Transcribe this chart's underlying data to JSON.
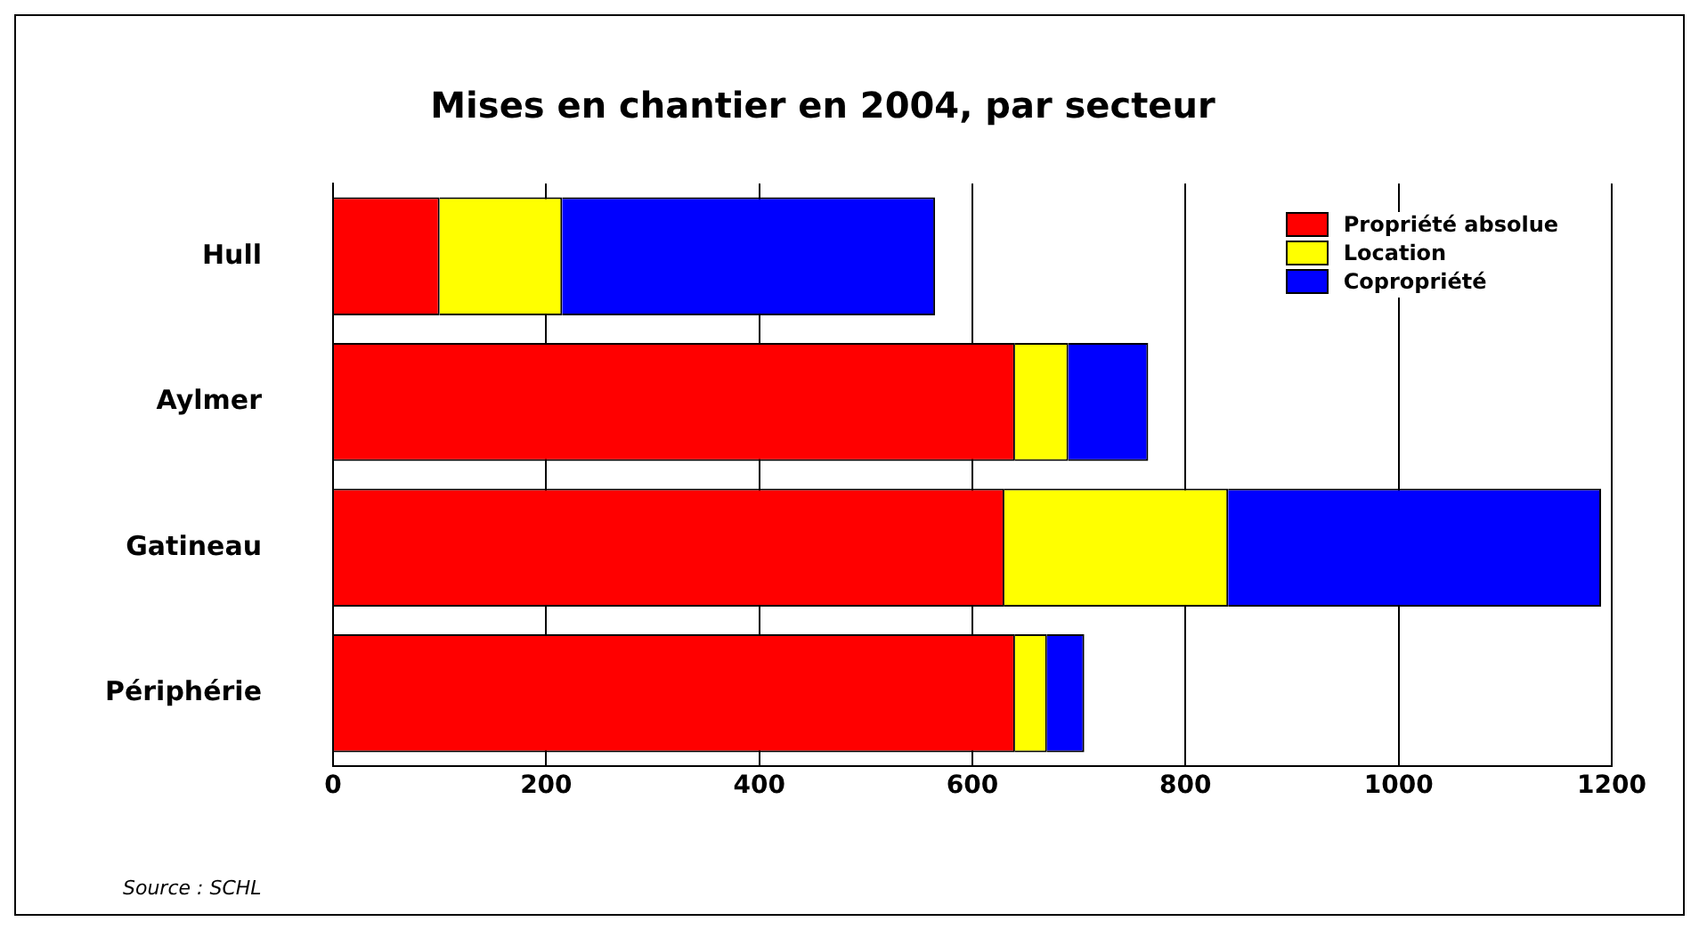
{
  "chart_data": {
    "type": "bar",
    "orientation": "horizontal",
    "stacked": true,
    "title": "Mises en chantier en 2004, par secteur",
    "categories": [
      "Hull",
      "Aylmer",
      "Gatineau",
      "Périphérie"
    ],
    "series": [
      {
        "name": "Propriété absolue",
        "color": "#ff0000",
        "values": [
          100,
          640,
          630,
          640
        ]
      },
      {
        "name": "Location",
        "color": "#ffff00",
        "values": [
          115,
          50,
          210,
          30
        ]
      },
      {
        "name": "Copropriété",
        "color": "#0000ff",
        "values": [
          350,
          75,
          350,
          35
        ]
      }
    ],
    "xlim": [
      0,
      1200
    ],
    "xticks": [
      0,
      200,
      400,
      600,
      800,
      1000,
      1200
    ],
    "grid": "x",
    "legend": "top right",
    "annotations": [
      "Source : SCHL"
    ]
  }
}
